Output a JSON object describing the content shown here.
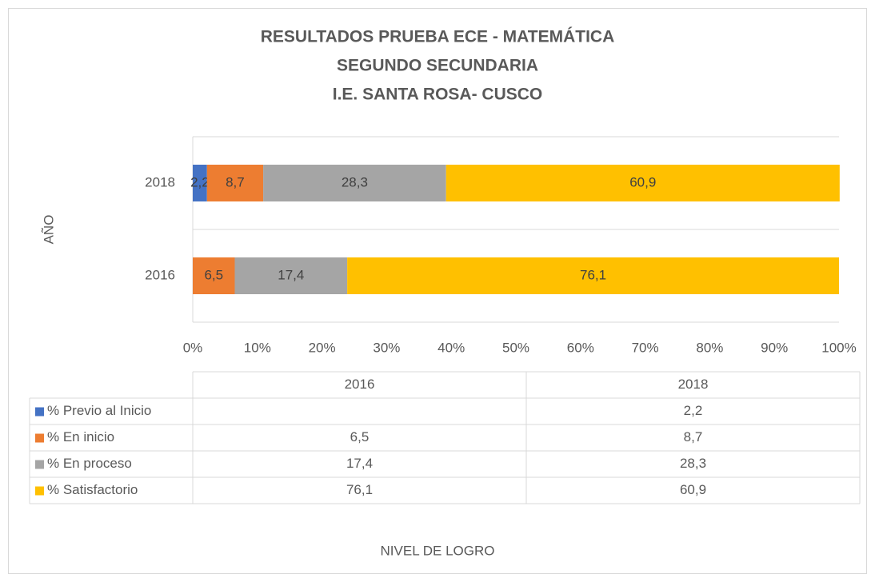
{
  "chart_data": {
    "type": "stacked_bar_horizontal",
    "title": [
      "RESULTADOS PRUEBA ECE - MATEMÁTICA",
      "SEGUNDO SECUNDARIA",
      "I.E. SANTA ROSA- CUSCO"
    ],
    "y_label": "AÑO",
    "x_label": "NIVEL DE LOGRO",
    "categories": [
      "2016",
      "2018"
    ],
    "series": [
      {
        "name": "% Previo al  Inicio",
        "color": "#4472c4",
        "values": [
          null,
          2.2
        ],
        "value_labels": [
          null,
          "2,2"
        ]
      },
      {
        "name": "% En inicio",
        "color": "#ed7d31",
        "values": [
          6.5,
          8.7
        ],
        "value_labels": [
          "6,5",
          "8,7"
        ]
      },
      {
        "name": "% En proceso",
        "color": "#a5a5a5",
        "values": [
          17.4,
          28.3
        ],
        "value_labels": [
          "17,4",
          "28,3"
        ]
      },
      {
        "name": "% Satisfactorio",
        "color": "#ffc000",
        "values": [
          76.1,
          60.9
        ],
        "value_labels": [
          "76,1",
          "60,9"
        ]
      }
    ],
    "xlim": [
      0,
      100
    ],
    "xticks": [
      {
        "value": 0,
        "label": "0%"
      },
      {
        "value": 10,
        "label": "10%"
      },
      {
        "value": 20,
        "label": "20%"
      },
      {
        "value": 30,
        "label": "30%"
      },
      {
        "value": 40,
        "label": "40%"
      },
      {
        "value": 50,
        "label": "50%"
      },
      {
        "value": 60,
        "label": "60%"
      },
      {
        "value": 70,
        "label": "70%"
      },
      {
        "value": 80,
        "label": "80%"
      },
      {
        "value": 90,
        "label": "90%"
      },
      {
        "value": 100,
        "label": "100%"
      }
    ],
    "data_table": true
  }
}
